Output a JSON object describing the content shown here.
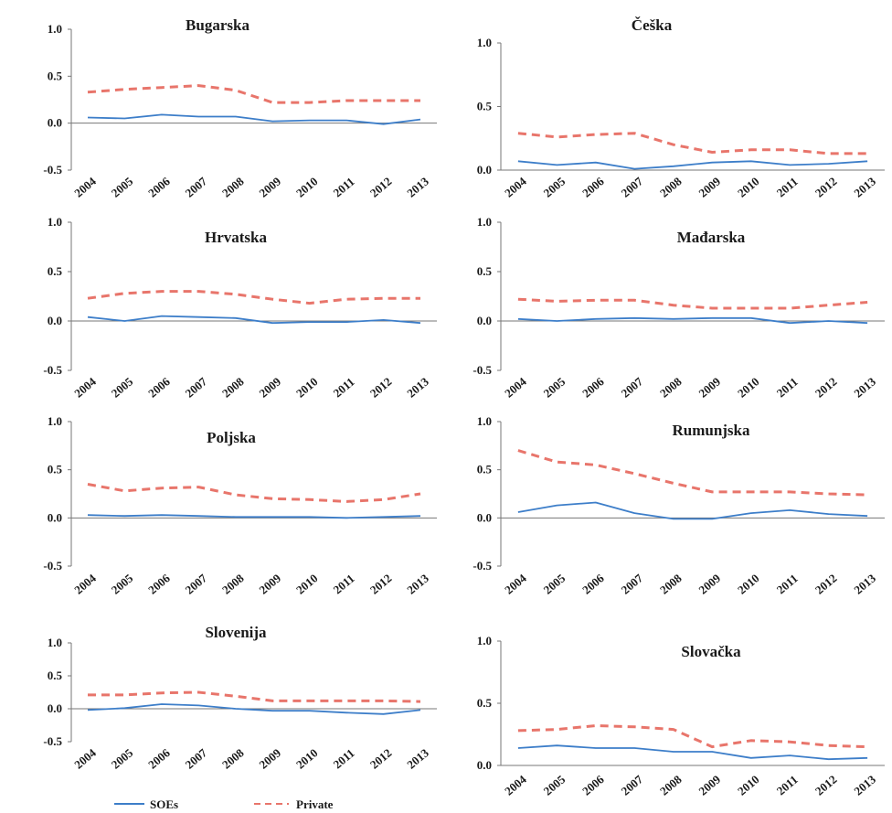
{
  "legend": {
    "soe_label": "SOEs",
    "private_label": "Private"
  },
  "colors": {
    "soe": "#3d7ec9",
    "private": "#e8756b",
    "axis": "#777777",
    "text": "#1a1a1a"
  },
  "chart_data": [
    {
      "type": "line",
      "title": "Bugarska",
      "x": [
        "2004",
        "2005",
        "2006",
        "2007",
        "2008",
        "2009",
        "2010",
        "2011",
        "2012",
        "2013"
      ],
      "y_ticks": [
        "1.0",
        "0.5",
        "0.0",
        "-0.5"
      ],
      "ylim": [
        -0.5,
        1.0
      ],
      "series": [
        {
          "name": "SOEs",
          "values": [
            0.06,
            0.05,
            0.09,
            0.07,
            0.07,
            0.02,
            0.03,
            0.03,
            -0.01,
            0.04
          ]
        },
        {
          "name": "Private",
          "values": [
            0.33,
            0.36,
            0.38,
            0.4,
            0.35,
            0.22,
            0.22,
            0.24,
            0.24,
            0.24
          ]
        }
      ]
    },
    {
      "type": "line",
      "title": "Češka",
      "x": [
        "2004",
        "2005",
        "2006",
        "2007",
        "2008",
        "2009",
        "2010",
        "2011",
        "2012",
        "2013"
      ],
      "y_ticks": [
        "1.0",
        "0.5",
        "0.0"
      ],
      "ylim": [
        0.0,
        1.0
      ],
      "series": [
        {
          "name": "SOEs",
          "values": [
            0.07,
            0.04,
            0.06,
            0.01,
            0.03,
            0.06,
            0.07,
            0.04,
            0.05,
            0.07
          ]
        },
        {
          "name": "Private",
          "values": [
            0.29,
            0.26,
            0.28,
            0.29,
            0.2,
            0.14,
            0.16,
            0.16,
            0.13,
            0.13
          ]
        }
      ]
    },
    {
      "type": "line",
      "title": "Hrvatska",
      "x": [
        "2004",
        "2005",
        "2006",
        "2007",
        "2008",
        "2009",
        "2010",
        "2011",
        "2012",
        "2013"
      ],
      "y_ticks": [
        "1.0",
        "0.5",
        "0.0",
        "-0.5"
      ],
      "ylim": [
        -0.5,
        1.0
      ],
      "series": [
        {
          "name": "SOEs",
          "values": [
            0.04,
            0.0,
            0.05,
            0.04,
            0.03,
            -0.02,
            -0.01,
            -0.01,
            0.01,
            -0.02
          ]
        },
        {
          "name": "Private",
          "values": [
            0.23,
            0.28,
            0.3,
            0.3,
            0.27,
            0.22,
            0.18,
            0.22,
            0.23,
            0.23
          ]
        }
      ]
    },
    {
      "type": "line",
      "title": "Mađarska",
      "x": [
        "2004",
        "2005",
        "2006",
        "2007",
        "2008",
        "2009",
        "2010",
        "2011",
        "2012",
        "2013"
      ],
      "y_ticks": [
        "1.0",
        "0.5",
        "0.0",
        "-0.5"
      ],
      "ylim": [
        -0.5,
        1.0
      ],
      "series": [
        {
          "name": "SOEs",
          "values": [
            0.02,
            0.0,
            0.02,
            0.03,
            0.02,
            0.03,
            0.03,
            -0.02,
            0.0,
            -0.02
          ]
        },
        {
          "name": "Private",
          "values": [
            0.22,
            0.2,
            0.21,
            0.21,
            0.16,
            0.13,
            0.13,
            0.13,
            0.16,
            0.19
          ]
        }
      ]
    },
    {
      "type": "line",
      "title": "Poljska",
      "x": [
        "2004",
        "2005",
        "2006",
        "2007",
        "2008",
        "2009",
        "2010",
        "2011",
        "2012",
        "2013"
      ],
      "y_ticks": [
        "1.0",
        "0.5",
        "0.0",
        "-0.5"
      ],
      "ylim": [
        -0.5,
        1.0
      ],
      "series": [
        {
          "name": "SOEs",
          "values": [
            0.03,
            0.02,
            0.03,
            0.02,
            0.01,
            0.01,
            0.01,
            0.0,
            0.01,
            0.02
          ]
        },
        {
          "name": "Private",
          "values": [
            0.35,
            0.28,
            0.31,
            0.32,
            0.24,
            0.2,
            0.19,
            0.17,
            0.19,
            0.25
          ]
        }
      ]
    },
    {
      "type": "line",
      "title": "Rumunjska",
      "x": [
        "2004",
        "2005",
        "2006",
        "2007",
        "2008",
        "2009",
        "2010",
        "2011",
        "2012",
        "2013"
      ],
      "y_ticks": [
        "1.0",
        "0.5",
        "0.0",
        "-0.5"
      ],
      "ylim": [
        -0.5,
        1.0
      ],
      "series": [
        {
          "name": "SOEs",
          "values": [
            0.06,
            0.13,
            0.16,
            0.05,
            -0.01,
            -0.01,
            0.05,
            0.08,
            0.04,
            0.02
          ]
        },
        {
          "name": "Private",
          "values": [
            0.7,
            0.58,
            0.55,
            0.46,
            0.36,
            0.27,
            0.27,
            0.27,
            0.25,
            0.24
          ]
        }
      ]
    },
    {
      "type": "line",
      "title": "Slovenija",
      "x": [
        "2004",
        "2005",
        "2006",
        "2007",
        "2008",
        "2009",
        "2010",
        "2011",
        "2012",
        "2013"
      ],
      "y_ticks": [
        "1.0",
        "0.5",
        "0.0",
        "-0.5"
      ],
      "ylim": [
        -0.5,
        1.0
      ],
      "series": [
        {
          "name": "SOEs",
          "values": [
            -0.02,
            0.01,
            0.07,
            0.05,
            0.0,
            -0.03,
            -0.03,
            -0.06,
            -0.08,
            -0.02
          ]
        },
        {
          "name": "Private",
          "values": [
            0.21,
            0.21,
            0.24,
            0.25,
            0.19,
            0.12,
            0.12,
            0.12,
            0.12,
            0.11
          ]
        }
      ]
    },
    {
      "type": "line",
      "title": "Slovačka",
      "x": [
        "2004",
        "2005",
        "2006",
        "2007",
        "2008",
        "2009",
        "2010",
        "2011",
        "2012",
        "2013"
      ],
      "y_ticks": [
        "1.0",
        "0.5",
        "0.0"
      ],
      "ylim": [
        0.0,
        1.0
      ],
      "series": [
        {
          "name": "SOEs",
          "values": [
            0.14,
            0.16,
            0.14,
            0.14,
            0.11,
            0.11,
            0.06,
            0.08,
            0.05,
            0.06
          ]
        },
        {
          "name": "Private",
          "values": [
            0.28,
            0.29,
            0.32,
            0.31,
            0.29,
            0.15,
            0.2,
            0.19,
            0.16,
            0.15
          ]
        }
      ]
    }
  ]
}
